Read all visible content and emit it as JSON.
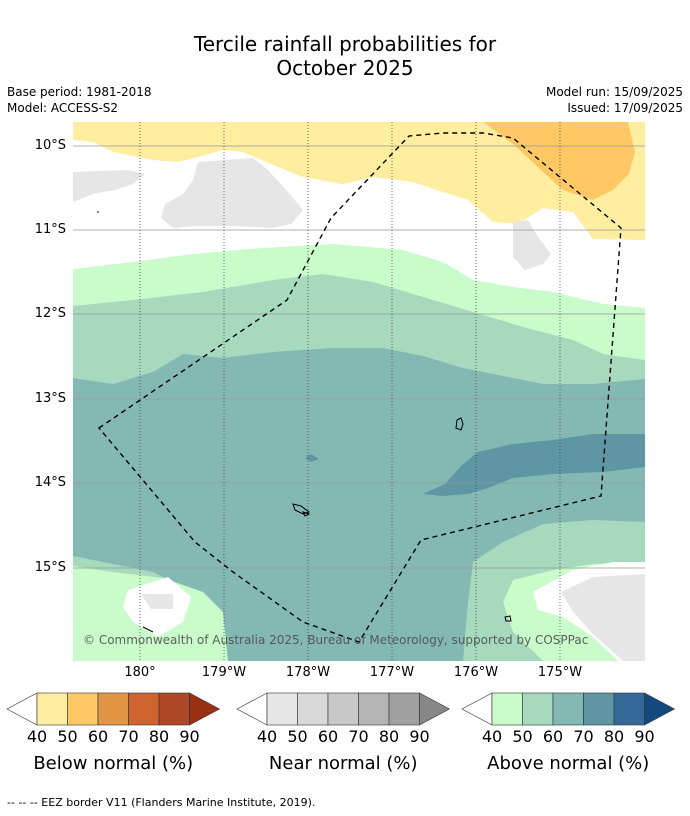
{
  "title_line1": "Tercile rainfall probabilities for",
  "title_line2": "October 2025",
  "base_period": "Base period: 1981-2018",
  "model": "Model: ACCESS-S2",
  "model_run": "Model run: 15/09/2025",
  "issued": "Issued: 17/09/2025",
  "latitude_labels": [
    "10°S",
    "11°S",
    "12°S",
    "13°S",
    "14°S",
    "15°S"
  ],
  "longitude_labels": [
    "180°",
    "179°W",
    "178°W",
    "177°W",
    "176°W",
    "175°W"
  ],
  "credit": "© Commonwealth of Australia 2025, Bureau of Meteorology, supported by COSPPac",
  "colorbars": [
    {
      "label": "Below normal (%)",
      "ticks": [
        "40",
        "50",
        "60",
        "70",
        "80",
        "90"
      ],
      "colors": [
        "#ffffff",
        "#ffeda0",
        "#fec965",
        "#e39544",
        "#d06431",
        "#ae4725",
        "#9a3013"
      ]
    },
    {
      "label": "Near normal (%)",
      "ticks": [
        "40",
        "50",
        "60",
        "70",
        "80",
        "90"
      ],
      "colors": [
        "#ffffff",
        "#e6e6e6",
        "#d9d9d9",
        "#c8c8c8",
        "#b4b4b4",
        "#a0a0a0",
        "#878787"
      ]
    },
    {
      "label": "Above normal (%)",
      "ticks": [
        "40",
        "50",
        "60",
        "70",
        "80",
        "90"
      ],
      "colors": [
        "#ffffff",
        "#c9fbcb",
        "#a6d9be",
        "#83b8b3",
        "#5e96a3",
        "#336899",
        "#134a7e"
      ]
    }
  ],
  "footnote": "--  --  -- EEZ border V11 (Flanders Marine Institute, 2019)."
}
